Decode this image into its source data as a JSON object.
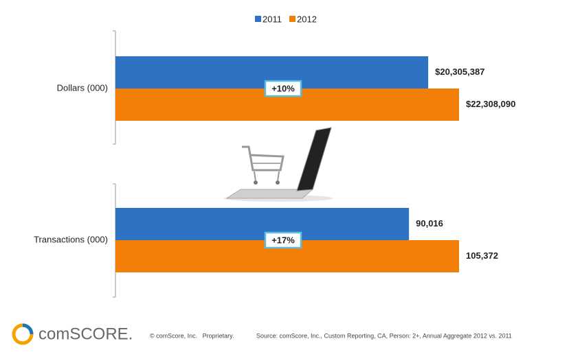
{
  "chart_data": [
    {
      "type": "bar",
      "orientation": "horizontal",
      "categories": [
        "Dollars (000)"
      ],
      "series": [
        {
          "name": "2011",
          "color": "#2e72c4",
          "values": [
            20305387
          ],
          "value_labels": [
            "$20,305,387"
          ]
        },
        {
          "name": "2012",
          "color": "#f07e07",
          "values": [
            22308090
          ],
          "value_labels": [
            "$22,308,090"
          ]
        }
      ],
      "annotation": "+10%"
    },
    {
      "type": "bar",
      "orientation": "horizontal",
      "categories": [
        "Transactions (000)"
      ],
      "series": [
        {
          "name": "2011",
          "color": "#2e72c4",
          "values": [
            90016
          ],
          "value_labels": [
            "90,016"
          ]
        },
        {
          "name": "2012",
          "color": "#f07e07",
          "values": [
            105372
          ],
          "value_labels": [
            "105,372"
          ]
        }
      ],
      "annotation": "+17%"
    }
  ],
  "footer": {
    "logo": "comSCORE.",
    "copyright": "© comScore, Inc.   Proprietary.",
    "source": "Source: comScore, Inc., Custom Reporting, CA, Person: 2+, Annual Aggregate 2012 vs. 2011"
  }
}
